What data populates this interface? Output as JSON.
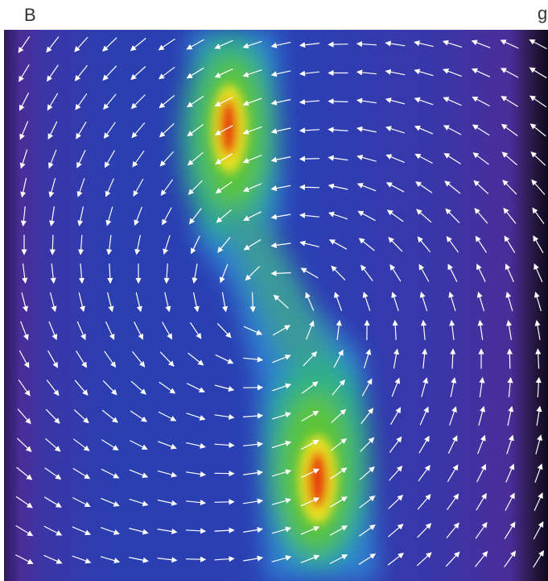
{
  "panel": {
    "label": "B",
    "corner_fragment": "g"
  }
}
